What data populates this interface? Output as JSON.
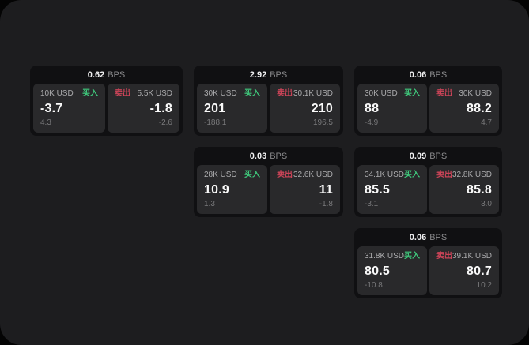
{
  "theme": {
    "background": "#040404",
    "window_bg": "#1d1d1f",
    "card_bg": "#101012",
    "panel_bg": "#29292b",
    "buy_color": "#3fc97c",
    "sell_color": "#cb4458"
  },
  "labels": {
    "unit": "BPS",
    "buy": "买入",
    "sell": "卖出"
  },
  "cards": [
    {
      "spread": "0.62",
      "buy": {
        "notional": "10K USD",
        "price": "-3.7",
        "delta": "4.3"
      },
      "sell": {
        "notional": "5.5K USD",
        "price": "-1.8",
        "delta": "-2.6"
      }
    },
    {
      "spread": "2.92",
      "buy": {
        "notional": "30K USD",
        "price": "201",
        "delta": "-188.1"
      },
      "sell": {
        "notional": "30.1K USD",
        "price": "210",
        "delta": "196.5"
      }
    },
    {
      "spread": "0.06",
      "buy": {
        "notional": "30K USD",
        "price": "88",
        "delta": "-4.9"
      },
      "sell": {
        "notional": "30K USD",
        "price": "88.2",
        "delta": "4.7"
      }
    },
    {
      "spread": "0.03",
      "buy": {
        "notional": "28K USD",
        "price": "10.9",
        "delta": "1.3"
      },
      "sell": {
        "notional": "32.6K USD",
        "price": "11",
        "delta": "-1.8"
      }
    },
    {
      "spread": "0.09",
      "buy": {
        "notional": "34.1K USD",
        "price": "85.5",
        "delta": "-3.1"
      },
      "sell": {
        "notional": "32.8K USD",
        "price": "85.8",
        "delta": "3.0"
      }
    },
    {
      "spread": "0.06",
      "buy": {
        "notional": "31.8K USD",
        "price": "80.5",
        "delta": "-10.8"
      },
      "sell": {
        "notional": "39.1K USD",
        "price": "80.7",
        "delta": "10.2"
      }
    }
  ]
}
